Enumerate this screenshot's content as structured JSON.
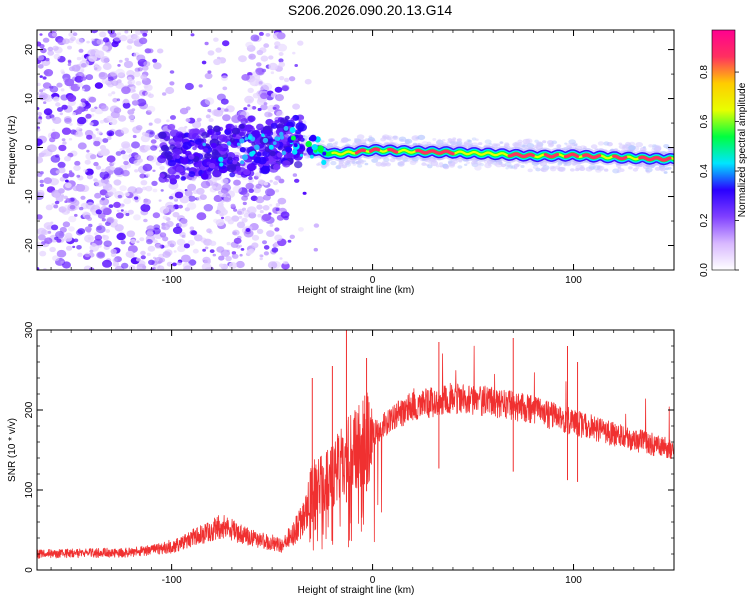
{
  "title": "S206.2026.090.20.13.G14",
  "chart_data": [
    {
      "type": "heatmap",
      "xlabel": "Height of straight line (km)",
      "ylabel": "Frequency (Hz)",
      "xlim": [
        -167,
        150
      ],
      "ylim": [
        -25,
        24
      ],
      "xticks": [
        -100,
        0,
        100
      ],
      "yticks": [
        20,
        10,
        0,
        -10,
        -20
      ],
      "colorbar": {
        "label": "Normalized spectral amplitude",
        "range": [
          0.0,
          0.97
        ],
        "ticks": [
          0.0,
          0.2,
          0.4,
          0.6,
          0.8
        ],
        "tick_labels": [
          "0.0",
          "0.2",
          "0.4",
          "0.6",
          "0.8"
        ],
        "colormap": [
          "#ffffff",
          "#d8b8ff",
          "#8040ff",
          "#2a00ff",
          "#00e5ff",
          "#00ff40",
          "#e8ff00",
          "#ffcc00",
          "#ff3060",
          "#ff0090"
        ]
      },
      "ridge": [
        {
          "x": -95,
          "f": -2.0
        },
        {
          "x": -80,
          "f": -0.8
        },
        {
          "x": -60,
          "f": -0.5
        },
        {
          "x": -40,
          "f": 1.5
        },
        {
          "x": -30,
          "f": -0.5
        },
        {
          "x": -20,
          "f": -1.3
        },
        {
          "x": -10,
          "f": -1.0
        },
        {
          "x": 0,
          "f": -0.5
        },
        {
          "x": 20,
          "f": -0.8
        },
        {
          "x": 40,
          "f": -1.0
        },
        {
          "x": 60,
          "f": -1.3
        },
        {
          "x": 80,
          "f": -1.7
        },
        {
          "x": 100,
          "f": -1.6
        },
        {
          "x": 120,
          "f": -2.0
        },
        {
          "x": 150,
          "f": -2.4
        }
      ]
    },
    {
      "type": "line",
      "xlabel": "Height of straight line (km)",
      "ylabel": "SNR (10 * v/v)",
      "xlim": [
        -167,
        150
      ],
      "ylim": [
        0,
        300
      ],
      "xticks": [
        -100,
        0,
        100
      ],
      "yticks": [
        0,
        100,
        200,
        300
      ],
      "line_color": "#f03030",
      "envelope": [
        {
          "x": -167,
          "y": 20
        },
        {
          "x": -120,
          "y": 22
        },
        {
          "x": -100,
          "y": 28
        },
        {
          "x": -85,
          "y": 45
        },
        {
          "x": -75,
          "y": 55
        },
        {
          "x": -60,
          "y": 40
        },
        {
          "x": -45,
          "y": 30
        },
        {
          "x": -35,
          "y": 60
        },
        {
          "x": -30,
          "y": 100
        },
        {
          "x": -20,
          "y": 120
        },
        {
          "x": -10,
          "y": 150
        },
        {
          "x": 0,
          "y": 170
        },
        {
          "x": 10,
          "y": 190
        },
        {
          "x": 20,
          "y": 205
        },
        {
          "x": 40,
          "y": 215
        },
        {
          "x": 60,
          "y": 210
        },
        {
          "x": 80,
          "y": 200
        },
        {
          "x": 100,
          "y": 185
        },
        {
          "x": 120,
          "y": 170
        },
        {
          "x": 150,
          "y": 150
        }
      ],
      "spikes": [
        {
          "x": -30,
          "y": 240
        },
        {
          "x": -20,
          "y": 255
        },
        {
          "x": -13,
          "y": 300
        },
        {
          "x": -3,
          "y": 265
        },
        {
          "x": 33,
          "y": 285
        },
        {
          "x": 70,
          "y": 290
        },
        {
          "x": 97,
          "y": 280
        },
        {
          "x": 102,
          "y": 260
        }
      ]
    }
  ]
}
